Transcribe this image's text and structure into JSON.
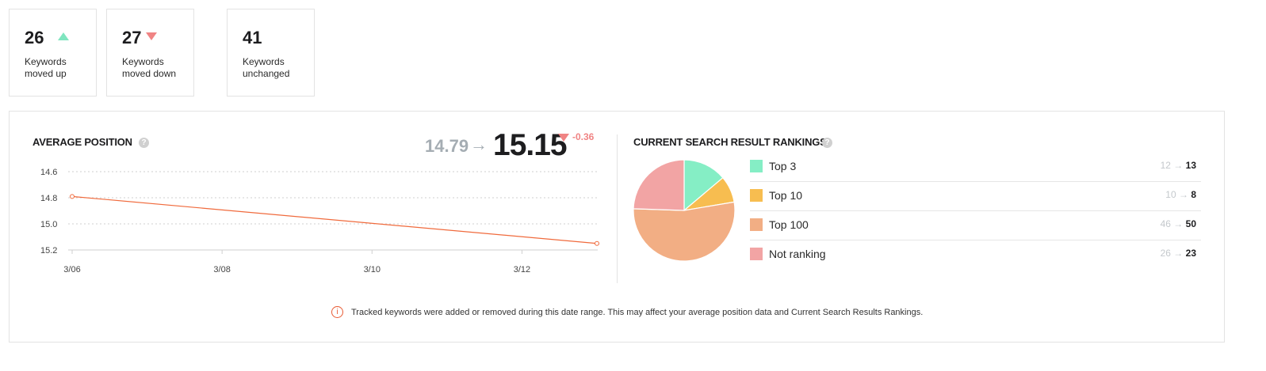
{
  "stats": [
    {
      "value": "26",
      "label": "Keywords moved up",
      "trend": "up"
    },
    {
      "value": "27",
      "label": "Keywords moved down",
      "trend": "down"
    },
    {
      "value": "41",
      "label": "Keywords unchanged",
      "trend": "none"
    }
  ],
  "avg_position": {
    "title": "AVERAGE POSITION",
    "help_icon": "question-icon",
    "previous": "14.79",
    "arrow": "→",
    "current": "15.15",
    "delta": "-0.36",
    "delta_color": "#f08484"
  },
  "rankings": {
    "title": "CURRENT SEARCH RESULT RANKINGS",
    "help_icon": "question-icon",
    "rows": [
      {
        "name": "Top 3",
        "from": "12",
        "arrow": "→",
        "to": "13",
        "color": "#85eec5"
      },
      {
        "name": "Top 10",
        "from": "10",
        "arrow": "→",
        "to": "8",
        "color": "#f7bd50"
      },
      {
        "name": "Top 100",
        "from": "46",
        "arrow": "→",
        "to": "50",
        "color": "#f2ae84"
      },
      {
        "name": "Not ranking",
        "from": "26",
        "arrow": "→",
        "to": "23",
        "color": "#f2a4a4"
      }
    ]
  },
  "notice": {
    "icon": "info-icon",
    "text": "Tracked keywords were added or removed during this date range. This may affect your average position data and Current Search Results Rankings."
  },
  "chart_data": [
    {
      "type": "line",
      "x_tick_labels": [
        "3/06",
        "3/08",
        "3/10",
        "3/12"
      ],
      "y_tick_labels": [
        "14.6",
        "14.8",
        "15.0",
        "15.2"
      ],
      "ylim": [
        14.6,
        15.2
      ],
      "y_inverted": true,
      "x_range_days": [
        6,
        13
      ],
      "series": [
        {
          "points": [
            {
              "x": "3/06",
              "day": 6,
              "y": 14.79
            },
            {
              "x": "3/13",
              "day": 13,
              "y": 15.15
            }
          ],
          "color": "#f06a3c"
        }
      ],
      "grid": true
    },
    {
      "type": "pie",
      "slices": [
        {
          "label": "Top 3",
          "value": 13,
          "color": "#85eec5"
        },
        {
          "label": "Top 10",
          "value": 8,
          "color": "#f7bd50"
        },
        {
          "label": "Top 100",
          "value": 50,
          "color": "#f2ae84"
        },
        {
          "label": "Not ranking",
          "value": 23,
          "color": "#f2a4a4"
        }
      ]
    }
  ]
}
